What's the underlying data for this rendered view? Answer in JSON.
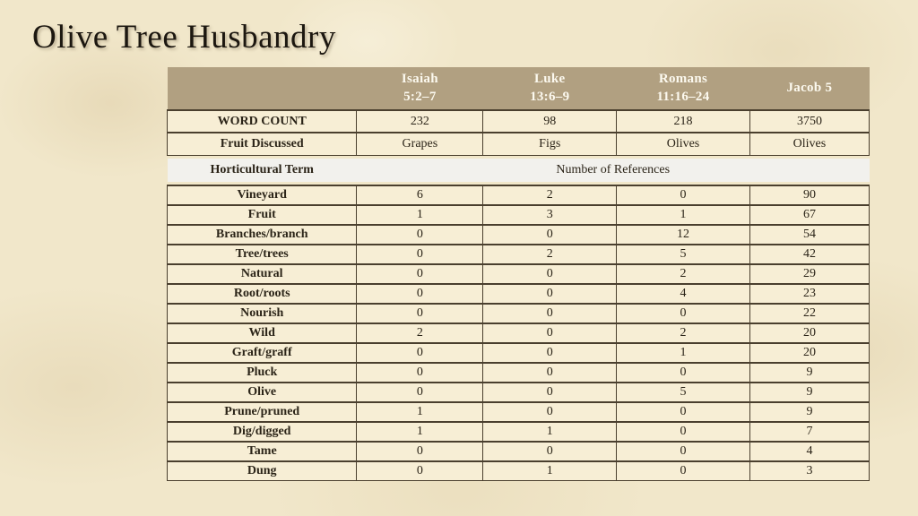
{
  "slide": {
    "title": "Olive Tree Husbandry"
  },
  "table": {
    "header": {
      "corner": "",
      "passages": [
        {
          "name": "isaiah",
          "line1": "Isaiah",
          "line2": "5:2–7"
        },
        {
          "name": "luke",
          "line1": "Luke",
          "line2": "13:6–9"
        },
        {
          "name": "romans",
          "line1": "Romans",
          "line2": "11:16–24"
        },
        {
          "name": "jacob-5",
          "line1": "Jacob 5",
          "line2": ""
        }
      ]
    },
    "meta_rows": [
      {
        "label": "WORD COUNT",
        "values": [
          "232",
          "98",
          "218",
          "3750"
        ]
      },
      {
        "label": "Fruit Discussed",
        "values": [
          "Grapes",
          "Figs",
          "Olives",
          "Olives"
        ]
      }
    ],
    "section_row": {
      "label": "Horticultural Term",
      "span_label": "Number of References"
    },
    "data_rows": [
      {
        "term": "Vineyard",
        "values": [
          "6",
          "2",
          "0",
          "90"
        ]
      },
      {
        "term": "Fruit",
        "values": [
          "1",
          "3",
          "1",
          "67"
        ]
      },
      {
        "term": "Branches/branch",
        "values": [
          "0",
          "0",
          "12",
          "54"
        ]
      },
      {
        "term": "Tree/trees",
        "values": [
          "0",
          "2",
          "5",
          "42"
        ]
      },
      {
        "term": "Natural",
        "values": [
          "0",
          "0",
          "2",
          "29"
        ]
      },
      {
        "term": "Root/roots",
        "values": [
          "0",
          "0",
          "4",
          "23"
        ]
      },
      {
        "term": "Nourish",
        "values": [
          "0",
          "0",
          "0",
          "22"
        ]
      },
      {
        "term": "Wild",
        "values": [
          "2",
          "0",
          "2",
          "20"
        ]
      },
      {
        "term": "Graft/graff",
        "values": [
          "0",
          "0",
          "1",
          "20"
        ]
      },
      {
        "term": "Pluck",
        "values": [
          "0",
          "0",
          "0",
          "9"
        ]
      },
      {
        "term": "Olive",
        "values": [
          "0",
          "0",
          "5",
          "9"
        ]
      },
      {
        "term": "Prune/pruned",
        "values": [
          "1",
          "0",
          "0",
          "9"
        ]
      },
      {
        "term": "Dig/digged",
        "values": [
          "1",
          "1",
          "0",
          "7"
        ]
      },
      {
        "term": "Tame",
        "values": [
          "0",
          "0",
          "0",
          "4"
        ]
      },
      {
        "term": "Dung",
        "values": [
          "0",
          "1",
          "0",
          "3"
        ]
      }
    ],
    "colors": {
      "slide_background": "#f1e7ca",
      "header_background": "#b1a081",
      "header_text": "#fcf9ef",
      "cell_background": "#f7eed5",
      "section_band_background": "#f2f1ed",
      "border": "#4a3f2e",
      "body_text": "#2b2418",
      "title_text": "#1c1710"
    }
  }
}
